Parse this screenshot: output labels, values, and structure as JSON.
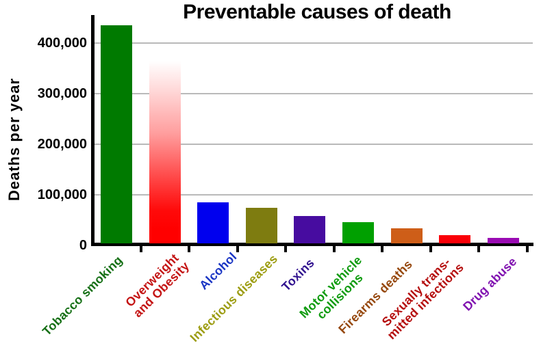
{
  "chart_data": {
    "type": "bar",
    "title": "Preventable causes of death",
    "xlabel": "",
    "ylabel": "Deaths per year",
    "ylim": [
      0,
      460000
    ],
    "grid": "horizontal gridlines every 100,000",
    "gridline_color": "#b9b9b9",
    "axis_color": "#000000",
    "background": "#ffffff",
    "legend": "none",
    "y_ticks": [
      {
        "label": "400,000",
        "value": 400000
      },
      {
        "label": "300,000",
        "value": 300000
      },
      {
        "label": "200,000",
        "value": 200000
      },
      {
        "label": "100,000",
        "value": 100000
      },
      {
        "label": "0",
        "value": 0
      }
    ],
    "bars": [
      {
        "category": "Tobacco smoking",
        "value": 435000,
        "color": "#007A00",
        "label_color": "#156F15"
      },
      {
        "category": "Overweight\nand Obesity",
        "value": 365000,
        "color": "#FF0000",
        "label_color": "#C41414",
        "fill": "gradient fading from white at top (~365,000) down to solid red near ~110,000"
      },
      {
        "category": "Alcohol",
        "value": 85000,
        "color": "#0000EE",
        "label_color": "#1A35C4"
      },
      {
        "category": "Infectious diseases",
        "value": 75000,
        "color": "#7E7C10",
        "label_color": "#9C9C10"
      },
      {
        "category": "Toxins",
        "value": 58000,
        "color": "#470CA0",
        "label_color": "#31128F"
      },
      {
        "category": "Motor vehicle\ncollisions",
        "value": 46000,
        "color": "#00A000",
        "label_color": "#0D9B0D"
      },
      {
        "category": "Firearms deaths",
        "value": 34000,
        "color": "#CE5E18",
        "label_color": "#96480E"
      },
      {
        "category": "Sexually trans-\nmitted infections",
        "value": 20000,
        "color": "#FA0008",
        "label_color": "#B50D0D"
      },
      {
        "category": "Drug abuse",
        "value": 15000,
        "color": "#9A0BB3",
        "label_color": "#8012B0"
      }
    ]
  }
}
